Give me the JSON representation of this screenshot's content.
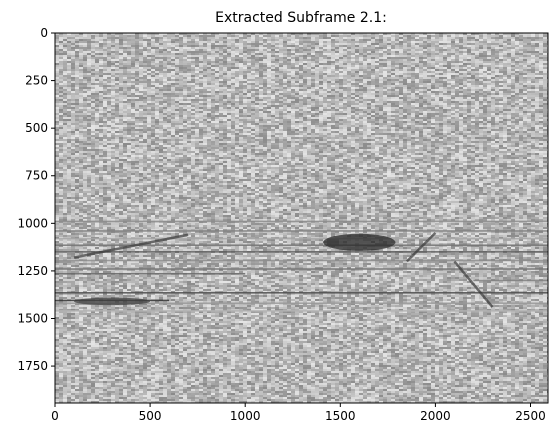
{
  "chart_data": {
    "type": "heatmap",
    "title": "Extracted Subframe 2.1:",
    "xlabel": "",
    "ylabel": "",
    "colormap": "gray",
    "xlim": [
      0,
      2592
    ],
    "ylim": [
      1944,
      0
    ],
    "x_ticks": [
      0,
      500,
      1000,
      1500,
      2000,
      2500
    ],
    "y_ticks": [
      0,
      250,
      500,
      750,
      1000,
      1250,
      1500,
      1750
    ],
    "grid": false,
    "legend": "none",
    "background_gray_mean": 0.72,
    "features": {
      "horizontal_streaks": [
        {
          "y": 990,
          "x_start": 0,
          "x_end": 2592,
          "darkness": 0.45
        },
        {
          "y": 1040,
          "x_start": 0,
          "x_end": 2592,
          "darkness": 0.5
        },
        {
          "y": 1080,
          "x_start": 0,
          "x_end": 2592,
          "darkness": 0.35
        },
        {
          "y": 1115,
          "x_start": 0,
          "x_end": 2592,
          "darkness": 0.55
        },
        {
          "y": 1150,
          "x_start": 0,
          "x_end": 2592,
          "darkness": 0.65
        },
        {
          "y": 1195,
          "x_start": 0,
          "x_end": 2592,
          "darkness": 0.45
        },
        {
          "y": 1240,
          "x_start": 0,
          "x_end": 2592,
          "darkness": 0.55
        },
        {
          "y": 1265,
          "x_start": 0,
          "x_end": 1000,
          "darkness": 0.6
        },
        {
          "y": 1300,
          "x_start": 2200,
          "x_end": 2592,
          "darkness": 0.5
        },
        {
          "y": 1365,
          "x_start": 0,
          "x_end": 2592,
          "darkness": 0.7
        },
        {
          "y": 1405,
          "x_start": 0,
          "x_end": 600,
          "darkness": 0.8
        },
        {
          "y": 1420,
          "x_start": 0,
          "x_end": 2592,
          "darkness": 0.4
        },
        {
          "y": 1460,
          "x_start": 0,
          "x_end": 2592,
          "darkness": 0.3
        }
      ],
      "dark_blobs": [
        {
          "x_center": 1600,
          "y_center": 1100,
          "width": 380,
          "height": 90,
          "darkness": 0.85
        },
        {
          "x_center": 300,
          "y_center": 1410,
          "width": 400,
          "height": 40,
          "darkness": 0.75
        }
      ],
      "diagonal_streaks": [
        {
          "x1": 100,
          "y1": 1180,
          "x2": 700,
          "y2": 1060
        },
        {
          "x1": 1850,
          "y1": 1200,
          "x2": 2000,
          "y2": 1050
        },
        {
          "x1": 2100,
          "y1": 1200,
          "x2": 2300,
          "y2": 1440
        }
      ]
    }
  }
}
